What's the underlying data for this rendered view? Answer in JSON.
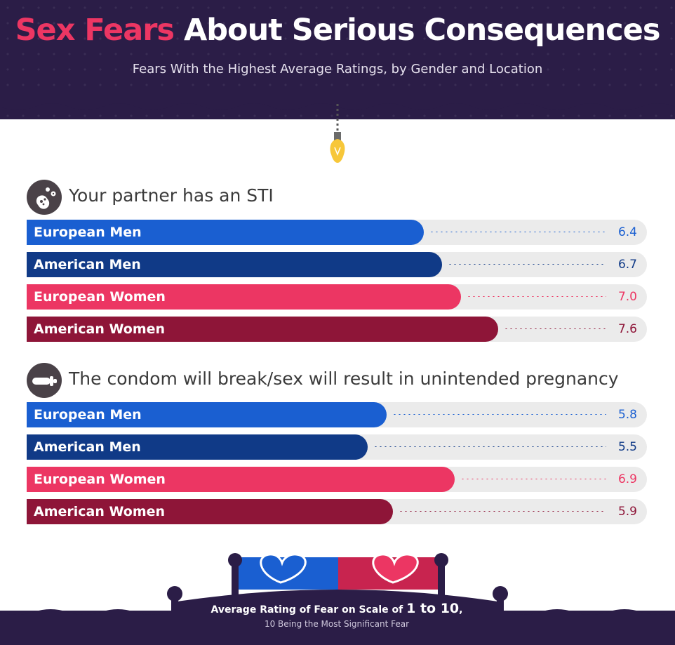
{
  "header": {
    "title_accent": "Sex Fears",
    "title_rest": "About Serious Consequences",
    "subtitle": "Fears With the Highest Average Ratings, by Gender and Location"
  },
  "colors": {
    "header_bg": "#2b1d47",
    "title_accent": "#ec3663",
    "european_men": "#1a5fd1",
    "american_men": "#103a87",
    "european_women": "#ec3663",
    "american_women": "#8e1538",
    "track": "#ebebeb",
    "bulb": "#f7c739"
  },
  "chart_data": [
    {
      "type": "bar",
      "orientation": "horizontal",
      "title": "Your partner has an STI",
      "icon": "virus-icon",
      "xlim": [
        0,
        10
      ],
      "categories": [
        "European Men",
        "American Men",
        "European Women",
        "American Women"
      ],
      "values": [
        6.4,
        6.7,
        7.0,
        7.6
      ],
      "value_labels": [
        "6.4",
        "6.7",
        "7.0",
        "7.6"
      ]
    },
    {
      "type": "bar",
      "orientation": "horizontal",
      "title": "The condom will break/sex will result in unintended pregnancy",
      "icon": "condom-icon",
      "xlim": [
        0,
        10
      ],
      "categories": [
        "European Men",
        "American Men",
        "European Women",
        "American Women"
      ],
      "values": [
        5.8,
        5.5,
        6.9,
        5.9
      ],
      "value_labels": [
        "5.8",
        "5.5",
        "6.9",
        "5.9"
      ]
    }
  ],
  "footer": {
    "line1_prefix": "Average Rating of Fear on Scale of ",
    "line1_emph": "1 to 10",
    "line1_suffix": ",",
    "line2": "10 Being the Most Significant Fear"
  }
}
